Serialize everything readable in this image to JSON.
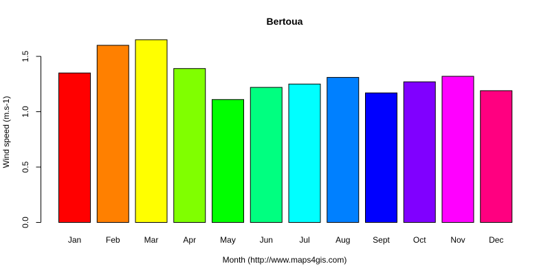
{
  "chart_data": {
    "type": "bar",
    "title": "Bertoua",
    "xlabel": "Month (http://www.maps4gis.com)",
    "ylabel": "Wind speed (m.s-1)",
    "categories": [
      "Jan",
      "Feb",
      "Mar",
      "Apr",
      "May",
      "Jun",
      "Jul",
      "Aug",
      "Sept",
      "Oct",
      "Nov",
      "Dec"
    ],
    "values": [
      1.35,
      1.6,
      1.65,
      1.39,
      1.11,
      1.22,
      1.25,
      1.31,
      1.17,
      1.27,
      1.32,
      1.19
    ],
    "colors": [
      "#FF0000",
      "#FF8000",
      "#FFFF00",
      "#80FF00",
      "#00FF00",
      "#00FF80",
      "#00FFFF",
      "#0080FF",
      "#0000FF",
      "#8000FF",
      "#FF00FF",
      "#FF0080"
    ],
    "yticks": [
      "0.0",
      "0.5",
      "1.0",
      "1.5"
    ],
    "ylim": [
      0,
      1.65
    ],
    "grid": false,
    "legend": "none"
  }
}
